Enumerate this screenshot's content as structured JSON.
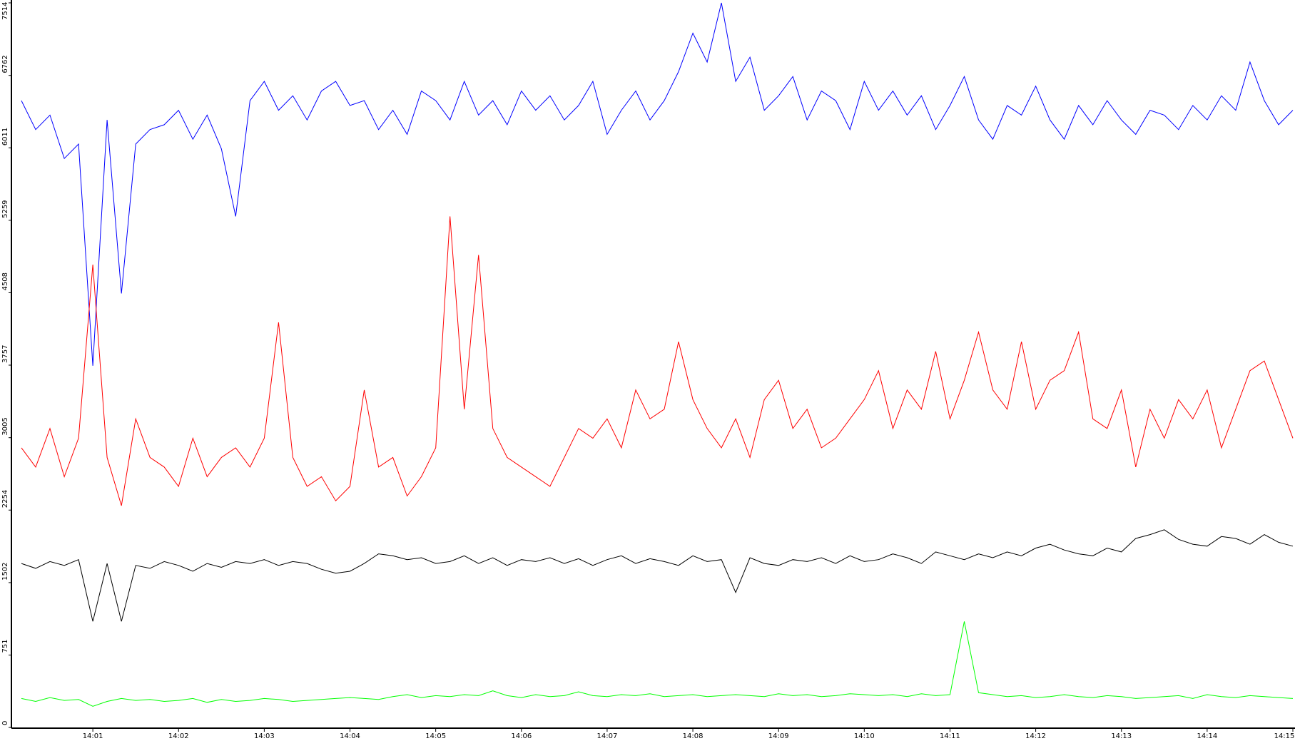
{
  "chart_data": {
    "type": "line",
    "categories": [
      null,
      null,
      null,
      null,
      null,
      "14:01",
      null,
      null,
      null,
      null,
      null,
      "14:02",
      null,
      null,
      null,
      null,
      null,
      "14:03",
      null,
      null,
      null,
      null,
      null,
      "14:04",
      null,
      null,
      null,
      null,
      null,
      "14:05",
      null,
      null,
      null,
      null,
      null,
      "14:06",
      null,
      null,
      null,
      null,
      null,
      "14:07",
      null,
      null,
      null,
      null,
      null,
      "14:08",
      null,
      null,
      null,
      null,
      null,
      "14:09",
      null,
      null,
      null,
      null,
      null,
      "14:10",
      null,
      null,
      null,
      null,
      null,
      "14:11",
      null,
      null,
      null,
      null,
      null,
      "14:12",
      null,
      null,
      null,
      null,
      null,
      "14:13",
      null,
      null,
      null,
      null,
      null,
      "14:14",
      null,
      null,
      null,
      null,
      null,
      "14:15"
    ],
    "series": [
      {
        "color": "#0000ff",
        "values": [
          6500,
          6200,
          6350,
          5900,
          6050,
          3750,
          6300,
          4500,
          6050,
          6200,
          6250,
          6400,
          6100,
          6350,
          6000,
          5300,
          6500,
          6700,
          6400,
          6550,
          6300,
          6600,
          6700,
          6450,
          6500,
          6200,
          6400,
          6150,
          6600,
          6500,
          6300,
          6700,
          6350,
          6500,
          6250,
          6600,
          6400,
          6550,
          6300,
          6450,
          6700,
          6150,
          6400,
          6600,
          6300,
          6500,
          6800,
          7200,
          6900,
          7514,
          6700,
          6950,
          6400,
          6550,
          6750,
          6300,
          6600,
          6500,
          6200,
          6700,
          6400,
          6600,
          6350,
          6550,
          6200,
          6450,
          6750,
          6300,
          6100,
          6450,
          6350,
          6650,
          6300,
          6100,
          6450,
          6250,
          6500,
          6300,
          6150,
          6400,
          6350,
          6200,
          6450,
          6300,
          6550,
          6400,
          6900,
          6500,
          6250,
          6400
        ]
      },
      {
        "color": "#ff0000",
        "values": [
          2900,
          2700,
          3100,
          2600,
          3000,
          4800,
          2800,
          2300,
          3200,
          2800,
          2700,
          2500,
          3000,
          2600,
          2800,
          2900,
          2700,
          3000,
          4200,
          2800,
          2500,
          2600,
          2350,
          2500,
          3500,
          2700,
          2800,
          2400,
          2600,
          2900,
          5300,
          3300,
          4900,
          3100,
          2800,
          2700,
          2600,
          2500,
          2800,
          3100,
          3000,
          3200,
          2900,
          3500,
          3200,
          3300,
          4000,
          3400,
          3100,
          2900,
          3200,
          2800,
          3400,
          3600,
          3100,
          3300,
          2900,
          3000,
          3200,
          3400,
          3700,
          3100,
          3500,
          3300,
          3900,
          3200,
          3600,
          4100,
          3500,
          3300,
          4000,
          3300,
          3600,
          3700,
          4100,
          3200,
          3100,
          3500,
          2700,
          3300,
          3000,
          3400,
          3200,
          3500,
          2900,
          3300,
          3700,
          3800,
          3400,
          3000
        ]
      },
      {
        "color": "#000000",
        "values": [
          1700,
          1650,
          1720,
          1680,
          1740,
          1100,
          1700,
          1100,
          1680,
          1650,
          1720,
          1680,
          1620,
          1700,
          1660,
          1720,
          1700,
          1740,
          1680,
          1720,
          1700,
          1640,
          1600,
          1620,
          1700,
          1800,
          1780,
          1740,
          1760,
          1700,
          1720,
          1780,
          1700,
          1760,
          1680,
          1740,
          1720,
          1760,
          1700,
          1750,
          1680,
          1740,
          1780,
          1700,
          1750,
          1720,
          1680,
          1780,
          1720,
          1740,
          1400,
          1760,
          1700,
          1680,
          1740,
          1720,
          1760,
          1700,
          1780,
          1720,
          1740,
          1800,
          1760,
          1700,
          1820,
          1780,
          1740,
          1800,
          1760,
          1820,
          1780,
          1860,
          1900,
          1840,
          1800,
          1780,
          1860,
          1820,
          1960,
          2000,
          2050,
          1950,
          1900,
          1880,
          1980,
          1960,
          1900,
          2000,
          1920,
          1880
        ]
      },
      {
        "color": "#00ff00",
        "values": [
          300,
          270,
          310,
          280,
          290,
          220,
          270,
          300,
          280,
          290,
          270,
          280,
          300,
          260,
          290,
          270,
          280,
          300,
          290,
          270,
          280,
          290,
          300,
          310,
          300,
          290,
          320,
          340,
          310,
          330,
          320,
          340,
          330,
          380,
          330,
          310,
          340,
          320,
          330,
          370,
          330,
          320,
          340,
          330,
          350,
          320,
          330,
          340,
          320,
          330,
          340,
          330,
          320,
          350,
          330,
          340,
          320,
          330,
          350,
          340,
          330,
          340,
          320,
          350,
          330,
          340,
          1100,
          360,
          340,
          320,
          330,
          310,
          320,
          340,
          320,
          310,
          330,
          320,
          300,
          310,
          320,
          330,
          300,
          340,
          320,
          310,
          330,
          320,
          310,
          300
        ]
      }
    ],
    "ylim": [
      0,
      7514
    ],
    "yticks": [
      0,
      751,
      1502,
      2254,
      3005,
      3757,
      4508,
      5259,
      6011,
      6762,
      7514
    ]
  }
}
